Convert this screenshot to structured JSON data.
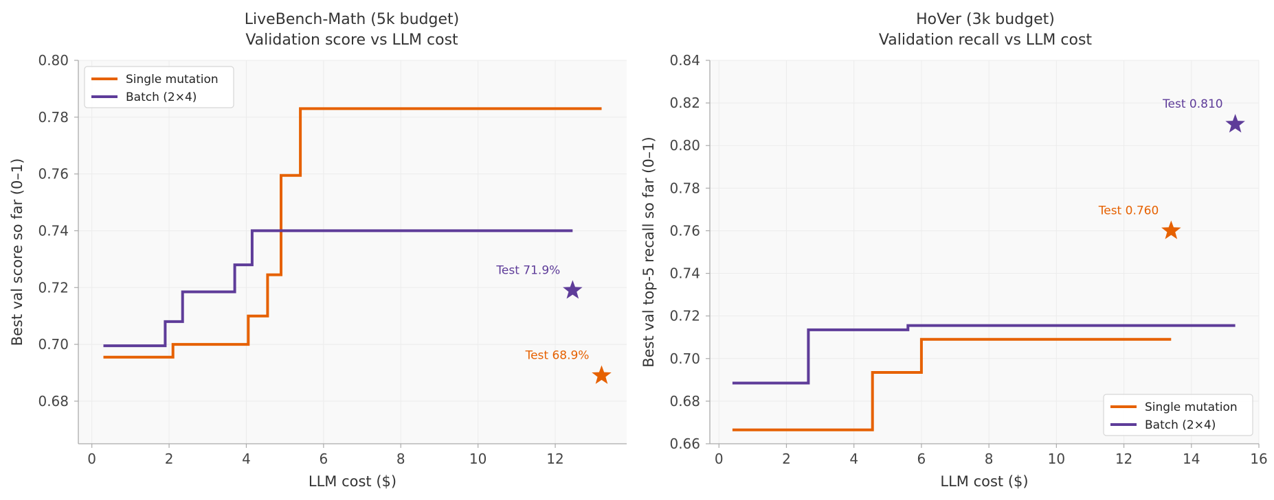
{
  "chart_data": [
    {
      "type": "line",
      "title_line1": "LiveBench-Math (5k budget)",
      "title_line2": "Validation score vs LLM cost",
      "xlabel": "LLM cost ($)",
      "ylabel": "Best val score so far (0–1)",
      "xlim": [
        -0.35,
        13.85
      ],
      "ylim": [
        0.665,
        0.8
      ],
      "xticks": [
        0,
        2,
        4,
        6,
        8,
        10,
        12
      ],
      "xtick_labels": [
        "0",
        "2",
        "4",
        "6",
        "8",
        "10",
        "12"
      ],
      "yticks": [
        0.68,
        0.7,
        0.72,
        0.74,
        0.76,
        0.78,
        0.8
      ],
      "ytick_labels": [
        "0.68",
        "0.70",
        "0.72",
        "0.74",
        "0.76",
        "0.78",
        "0.80"
      ],
      "grid": true,
      "legend_position": "top-left",
      "series": [
        {
          "name": "Single mutation",
          "color": "#e66101",
          "step": "post",
          "x": [
            0.3,
            2.1,
            4.05,
            4.55,
            4.9,
            5.4,
            13.2
          ],
          "y": [
            0.6955,
            0.7,
            0.71,
            0.7245,
            0.7595,
            0.783,
            0.783
          ]
        },
        {
          "name": "Batch (2×4)",
          "color": "#5e3c99",
          "step": "post",
          "x": [
            0.3,
            1.9,
            2.35,
            3.7,
            4.15,
            12.45
          ],
          "y": [
            0.6995,
            0.708,
            0.7185,
            0.728,
            0.74,
            0.74
          ]
        }
      ],
      "test_markers": [
        {
          "x": 12.45,
          "y": 0.719,
          "label": "Test 71.9%",
          "color": "#5e3c99"
        },
        {
          "x": 13.2,
          "y": 0.689,
          "label": "Test 68.9%",
          "color": "#e66101"
        }
      ]
    },
    {
      "type": "line",
      "title_line1": "HoVer (3k budget)",
      "title_line2": "Validation recall vs LLM cost",
      "xlabel": "LLM cost ($)",
      "ylabel": "Best val top-5 recall so far (0–1)",
      "xlim": [
        -0.27,
        16.0
      ],
      "ylim": [
        0.66,
        0.84
      ],
      "xticks": [
        0,
        2,
        4,
        6,
        8,
        10,
        12,
        14,
        16
      ],
      "xtick_labels": [
        "0",
        "2",
        "4",
        "6",
        "8",
        "10",
        "12",
        "14",
        "16"
      ],
      "yticks": [
        0.66,
        0.68,
        0.7,
        0.72,
        0.74,
        0.76,
        0.78,
        0.8,
        0.82,
        0.84
      ],
      "ytick_labels": [
        "0.66",
        "0.68",
        "0.70",
        "0.72",
        "0.74",
        "0.76",
        "0.78",
        "0.80",
        "0.82",
        "0.84"
      ],
      "grid": true,
      "legend_position": "bottom-right",
      "series": [
        {
          "name": "Single mutation",
          "color": "#e66101",
          "step": "post",
          "x": [
            0.4,
            4.55,
            6.0,
            13.4
          ],
          "y": [
            0.6665,
            0.6935,
            0.709,
            0.709
          ]
        },
        {
          "name": "Batch (2×4)",
          "color": "#5e3c99",
          "step": "post",
          "x": [
            0.4,
            2.65,
            5.6,
            15.3
          ],
          "y": [
            0.6885,
            0.7135,
            0.7155,
            0.7155
          ]
        }
      ],
      "test_markers": [
        {
          "x": 15.3,
          "y": 0.81,
          "label": "Test 0.810",
          "color": "#5e3c99"
        },
        {
          "x": 13.4,
          "y": 0.76,
          "label": "Test 0.760",
          "color": "#e66101"
        }
      ]
    }
  ]
}
